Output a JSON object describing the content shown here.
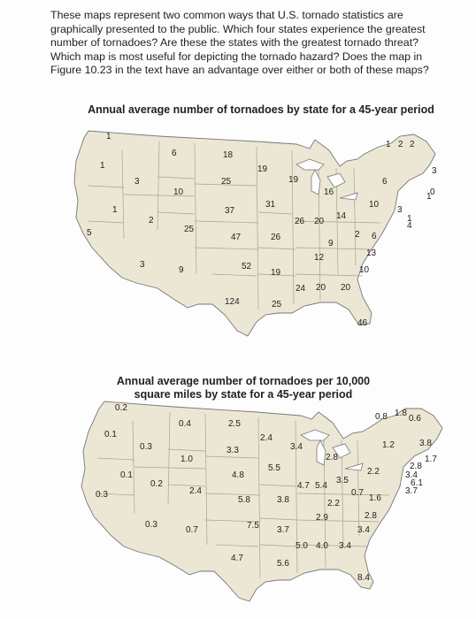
{
  "question": "These maps represent two common ways that U.S. tornado statistics are graphically presented to the public. Which four states experience the greatest number of tornadoes? Are these the states with the greatest tornado threat? Which map is most useful for depicting the tornado hazard? Does the map in Figure 10.23 in the text have an advantage over either or both of these maps?",
  "map1": {
    "title": "Annual average number of tornadoes by state for a 45-year period",
    "labels": [
      "1",
      "1",
      "1",
      "5",
      "3",
      "2",
      "3",
      "6",
      "10",
      "25",
      "9",
      "18",
      "25",
      "37",
      "47",
      "52",
      "124",
      "19",
      "31",
      "26",
      "19",
      "25",
      "19",
      "26",
      "20",
      "14",
      "16",
      "12",
      "9",
      "24",
      "20",
      "20",
      "10",
      "6",
      "2",
      "6",
      "13",
      "10",
      "46",
      "1",
      "2",
      "3",
      "3",
      "1",
      "1",
      "4",
      "0",
      "2"
    ]
  },
  "map2": {
    "title": "Annual average number of tornadoes per 10,000 square miles by state for a 45-year period",
    "labels": [
      "0.2",
      "0.1",
      "0.1",
      "0.3",
      "0.3",
      "0.2",
      "0.3",
      "0.4",
      "1.0",
      "2.4",
      "0.7",
      "2.5",
      "3.3",
      "4.8",
      "5.8",
      "7.5",
      "4.7",
      "2.4",
      "5.5",
      "3.8",
      "3.4",
      "4.7",
      "5.4",
      "2.8",
      "3.5",
      "2.2",
      "2.9",
      "3.7",
      "5.0",
      "4.0",
      "5.6",
      "3.4",
      "2.2",
      "0.7",
      "1.6",
      "2.8",
      "3.4",
      "8.4",
      "0.8",
      "1.8",
      "0.6",
      "1.2",
      "3.8",
      "1.7",
      "2.8",
      "3.4",
      "6.1",
      "3.7"
    ]
  }
}
